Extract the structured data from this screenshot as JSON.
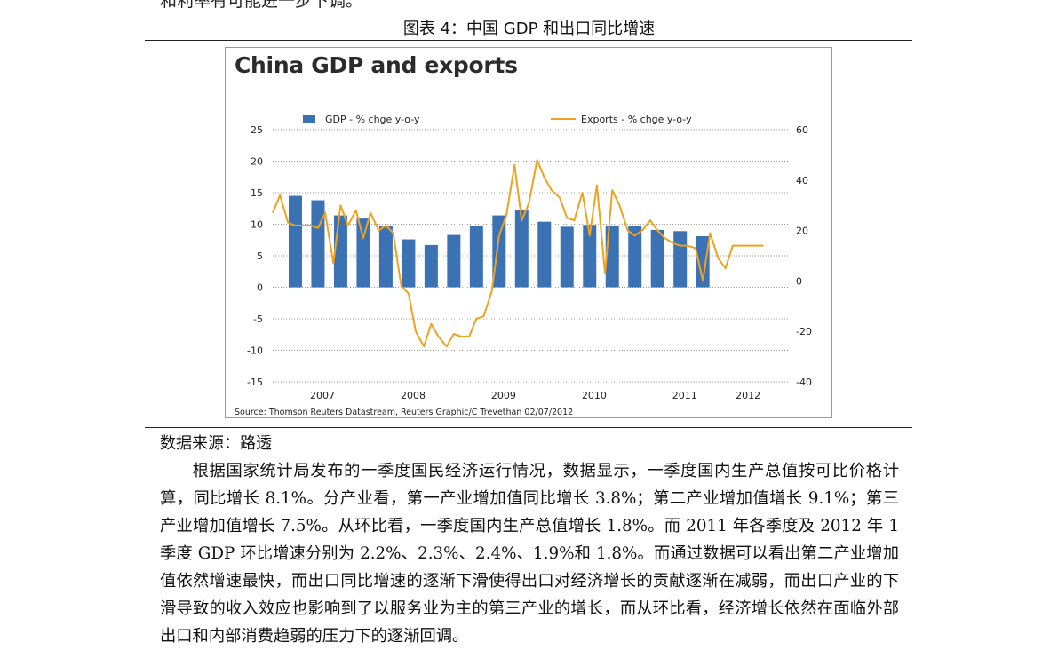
{
  "page": {
    "top_fragment": "和利率有可能进一步下调。",
    "figure_caption": "图表 4：中国 GDP 和出口同比增速",
    "data_source": "数据来源：路透",
    "paragraph": "根据国家统计局发布的一季度国民经济运行情况，数据显示，一季度国内生产总值按可比价格计算，同比增长 8.1%。分产业看，第一产业增加值同比增长 3.8%；第二产业增加值增长 9.1%；第三产业增加值增长 7.5%。从环比看，一季度国内生产总值增长 1.8%。而 2011 年各季度及 2012 年 1 季度 GDP 环比增速分别为 2.2%、2.3%、2.4%、1.9%和 1.8%。而通过数据可以看出第二产业增加值依然增速最快，而出口同比增速的逐渐下滑使得出口对经济增长的贡献逐渐在减弱，而出口产业的下滑导致的收入效应也影响到了以服务业为主的第三产业的增长，而从环比看，经济增长依然在面临外部出口和内部消费趋弱的压力下的逐渐回调。"
  },
  "chart_data": {
    "type": "bar+line",
    "title": "China GDP and exports",
    "source": "Source: Thomson Reuters Datastream, Reuters Graphic/C Trevethan 02/07/2012",
    "legend_placement": "top",
    "grid": true,
    "colors": {
      "bars": "#3b72b4",
      "line": "#f0a21f",
      "grid": "#9a9a9a",
      "text": "#222222"
    },
    "x_labels": [
      "2007",
      "2008",
      "2009",
      "2010",
      "2011",
      "2012"
    ],
    "x_label_positions": [
      2007.3,
      2008.3,
      2009.3,
      2010.3,
      2011.3,
      2012.0
    ],
    "x_range": [
      2006.75,
      2012.45
    ],
    "left_axis": {
      "ylim": [
        -15,
        25
      ],
      "ticks": [
        -15,
        -10,
        -5,
        0,
        5,
        10,
        15,
        20,
        25
      ]
    },
    "right_axis": {
      "ylim": [
        -40,
        60
      ],
      "ticks": [
        -40,
        -20,
        0,
        20,
        40,
        60
      ]
    },
    "series": [
      {
        "name": "GDP - % chge y-o-y",
        "kind": "bar",
        "axis": "left",
        "x": [
          2007.0,
          2007.25,
          2007.5,
          2007.75,
          2008.0,
          2008.25,
          2008.5,
          2008.75,
          2009.0,
          2009.25,
          2009.5,
          2009.75,
          2010.0,
          2010.25,
          2010.5,
          2010.75,
          2011.0,
          2011.25,
          2011.5,
          2011.75,
          2012.0
        ],
        "values": [
          14.5,
          13.8,
          11.4,
          10.9,
          9.8,
          7.6,
          6.7,
          8.3,
          9.7,
          11.4,
          12.2,
          10.4,
          9.6,
          9.9,
          9.8,
          9.7,
          9.1,
          8.9,
          8.1,
          null,
          null
        ]
      },
      {
        "name": "Exports - % chge y-o-y",
        "kind": "line",
        "axis": "right",
        "x": [
          2006.75,
          2006.83,
          2006.92,
          2007.0,
          2007.08,
          2007.17,
          2007.25,
          2007.33,
          2007.42,
          2007.5,
          2007.58,
          2007.67,
          2007.75,
          2007.83,
          2007.92,
          2008.0,
          2008.08,
          2008.17,
          2008.25,
          2008.33,
          2008.42,
          2008.5,
          2008.58,
          2008.67,
          2008.75,
          2008.83,
          2008.92,
          2009.0,
          2009.08,
          2009.17,
          2009.25,
          2009.33,
          2009.42,
          2009.5,
          2009.58,
          2009.67,
          2009.75,
          2009.83,
          2009.92,
          2010.0,
          2010.08,
          2010.17,
          2010.25,
          2010.33,
          2010.42,
          2010.5,
          2010.58,
          2010.67,
          2010.75,
          2010.83,
          2010.92,
          2011.0,
          2011.08,
          2011.17,
          2011.25,
          2011.33,
          2011.42,
          2011.5,
          2011.58,
          2011.67,
          2011.75,
          2011.83,
          2011.92,
          2012.0,
          2012.08,
          2012.17
        ],
        "values": [
          27,
          34,
          23,
          22,
          22,
          22,
          21,
          27,
          7,
          30,
          22,
          28,
          17,
          27,
          20,
          22,
          19,
          -2,
          -5,
          -20,
          -26,
          -17,
          -22,
          -26,
          -21,
          -22,
          -22,
          -15,
          -14,
          -4,
          18,
          26,
          46,
          24,
          31,
          48,
          41,
          36,
          33,
          25,
          24,
          35,
          18,
          38,
          3,
          36,
          30,
          20,
          18,
          20,
          24,
          20,
          17,
          15,
          14,
          14,
          13,
          0,
          19,
          9,
          5,
          14,
          14,
          14,
          14,
          14
        ]
      }
    ]
  }
}
